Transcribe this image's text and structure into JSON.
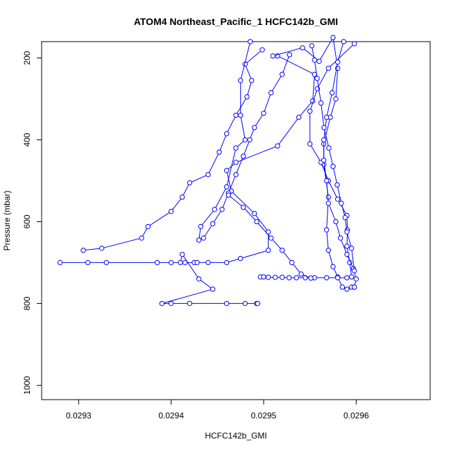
{
  "chart_data": {
    "type": "line",
    "title": "ATOM4 Northeast_Pacific_1 HCFC142b_GMI",
    "xlabel": "HCFC142b_GMI",
    "ylabel": "Pressure (mbar)",
    "xlim": [
      0.02926,
      0.02968
    ],
    "ylim": [
      1035,
      160
    ],
    "y_inverted": true,
    "x_ticks": [
      "0.0293",
      "0.0294",
      "0.0295",
      "0.0296"
    ],
    "x_tick_values": [
      0.0293,
      0.0294,
      0.0295,
      0.0296
    ],
    "y_ticks": [
      "200",
      "400",
      "600",
      "800",
      "1000"
    ],
    "y_tick_values": [
      200,
      400,
      600,
      800,
      1000
    ],
    "grid": false,
    "marker": "open-circle",
    "series_color": "#0000ff",
    "series": [
      {
        "x": [
          0.029515,
          0.029555,
          0.029553,
          0.029538,
          0.029515,
          0.02947,
          0.02946,
          0.029465,
          0.02949,
          0.029505,
          0.029505,
          0.029475,
          0.02946,
          0.02944,
          0.029425,
          0.029385,
          0.02928,
          0.02931,
          0.02933,
          0.0294,
          0.029415,
          0.029425,
          0.029428,
          0.02941,
          0.029412,
          0.02943,
          0.029445,
          0.02939,
          0.0294,
          0.02942,
          0.02946,
          0.02948,
          0.0294925,
          0.0294935
        ],
        "y": [
          195,
          240,
          305,
          345,
          415,
          455,
          475,
          525,
          580,
          625,
          670,
          690,
          700,
          700,
          700,
          700,
          700,
          700,
          700,
          700,
          700,
          700,
          700,
          700,
          680,
          740,
          765,
          800,
          800,
          800,
          800,
          800,
          800,
          800
        ]
      },
      {
        "x": [
          0.0294985,
          0.02948,
          0.029487,
          0.029482,
          0.02947,
          0.02946,
          0.029452,
          0.02944,
          0.02942,
          0.029412,
          0.0294,
          0.029375,
          0.029368,
          0.029325,
          0.029305
        ],
        "y": [
          180,
          215,
          255,
          295,
          340,
          385,
          430,
          485,
          505,
          540,
          575,
          612,
          640,
          665,
          670
        ]
      },
      {
        "x": [
          0.0294855,
          0.029475,
          0.029475,
          0.02948,
          0.02947,
          0.02946,
          0.029447,
          0.029432,
          0.02943
        ],
        "y": [
          160,
          255,
          340,
          400,
          420,
          515,
          570,
          612,
          645
        ]
      },
      {
        "x": [
          0.02951,
          0.029542,
          0.02956,
          0.029575,
          0.02958,
          0.029578,
          0.029572,
          0.029565,
          0.029565,
          0.02957,
          0.029568,
          0.02957,
          0.029575,
          0.02958,
          0.029585,
          0.02959,
          0.029595,
          0.029598
        ],
        "y": [
          195,
          175,
          208,
          150,
          225,
          300,
          345,
          410,
          460,
          540,
          620,
          670,
          710,
          735,
          760,
          765,
          760,
          760
        ]
      },
      {
        "x": [
          0.029598,
          0.02957,
          0.029558,
          0.02955,
          0.02955,
          0.029562,
          0.02957,
          0.02958,
          0.02959,
          0.0295905,
          0.02959,
          0.029593,
          0.029595
        ],
        "y": [
          165,
          225,
          275,
          330,
          410,
          455,
          500,
          545,
          585,
          620,
          660,
          700,
          735
        ]
      },
      {
        "x": [
          0.0295865,
          0.02958,
          0.029574,
          0.029568,
          0.029565,
          0.029565,
          0.029568,
          0.02957,
          0.029578,
          0.029583,
          0.02959,
          0.029597,
          0.0296,
          0.029598
        ],
        "y": [
          160,
          210,
          285,
          345,
          400,
          450,
          500,
          555,
          600,
          640,
          680,
          715,
          740,
          760
        ]
      },
      {
        "x": [
          0.029598,
          0.029595,
          0.02959,
          0.029588,
          0.029584,
          0.0295795,
          0.029575,
          0.0295705,
          0.0295652,
          0.029562,
          0.0295578,
          0.029555,
          0.029552
        ],
        "y": [
          720,
          665,
          625,
          590,
          555,
          510,
          465,
          420,
          370,
          310,
          250,
          205,
          170
        ]
      },
      {
        "x": [
          0.029528,
          0.02952,
          0.029508,
          0.0295,
          0.02949,
          0.029485,
          0.029478,
          0.02947,
          0.029462,
          0.029455,
          0.029445,
          0.029435
        ],
        "y": [
          192,
          240,
          285,
          335,
          370,
          400,
          440,
          485,
          530,
          570,
          605,
          640
        ]
      },
      {
        "x": [
          0.0294965,
          0.0295,
          0.029505,
          0.0295125,
          0.02952,
          0.0295275,
          0.0295355,
          0.029545,
          0.029555,
          0.029568,
          0.02958,
          0.02959
        ],
        "y": [
          735,
          735,
          736,
          736,
          736,
          737,
          737,
          737,
          737,
          737,
          737,
          737
        ]
      },
      {
        "x": [
          0.029462,
          0.029478,
          0.0294925,
          0.029508,
          0.02952,
          0.0295305,
          0.0295405,
          0.029551
        ],
        "y": [
          535,
          565,
          600,
          640,
          670,
          700,
          728,
          738
        ]
      }
    ]
  }
}
